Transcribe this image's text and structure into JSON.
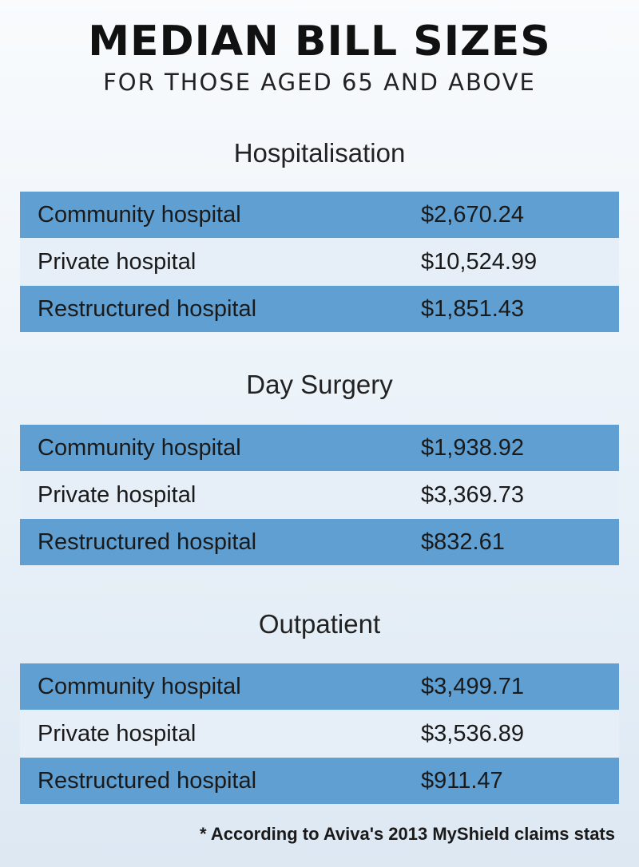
{
  "title": "MEDIAN BILL SIZES",
  "subtitle": "FOR THOSE AGED 65 AND ABOVE",
  "footnote": "* According to Aviva's 2013 MyShield claims stats",
  "chart_data": {
    "type": "table",
    "title": "MEDIAN BILL SIZES",
    "subtitle": "FOR THOSE AGED 65 AND ABOVE",
    "sections": [
      {
        "name": "Hospitalisation",
        "rows": [
          {
            "label": "Community hospital",
            "value": "$2,670.24"
          },
          {
            "label": "Private hospital",
            "value": "$10,524.99"
          },
          {
            "label": "Restructured hospital",
            "value": "$1,851.43"
          }
        ]
      },
      {
        "name": "Day Surgery",
        "rows": [
          {
            "label": "Community hospital",
            "value": "$1,938.92"
          },
          {
            "label": "Private hospital",
            "value": "$3,369.73"
          },
          {
            "label": "Restructured hospital",
            "value": "$832.61"
          }
        ]
      },
      {
        "name": "Outpatient",
        "rows": [
          {
            "label": "Community hospital",
            "value": "$3,499.71"
          },
          {
            "label": "Private hospital",
            "value": "$3,536.89"
          },
          {
            "label": "Restructured hospital",
            "value": "$911.47"
          }
        ]
      }
    ],
    "colors": {
      "row_dark": "#5f9fd2",
      "row_light": "#e6eef7"
    }
  }
}
